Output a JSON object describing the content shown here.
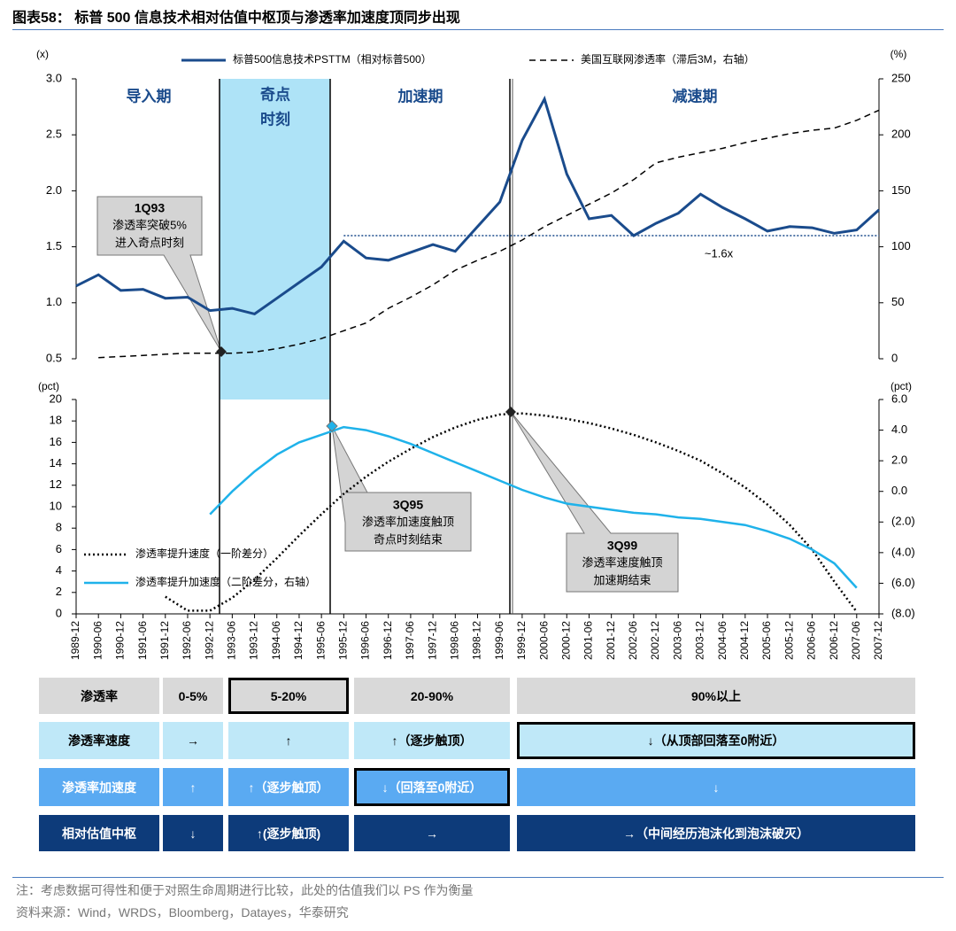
{
  "title": "图表58：  标普 500 信息技术相对估值中枢顶与渗透率加速度顶同步出现",
  "chart_data": [
    {
      "type": "line",
      "y_label": "(x)",
      "y2_label": "(%)",
      "ylim": [
        0.5,
        3.0
      ],
      "yticks": [
        0.5,
        {
          "value": 1,
          "label": "1.0"
        },
        1.5,
        {
          "value": 2,
          "label": "2.0"
        },
        2.5,
        {
          "value": 3,
          "label": "3.0"
        }
      ],
      "y2lim": [
        0,
        250
      ],
      "y2ticks": [
        0,
        50,
        100,
        150,
        200,
        250
      ],
      "series": [
        {
          "name": "标普500信息技术PSTTM（相对标普500）",
          "color": "#1a4b8c",
          "style": "solid",
          "values": [
            1.15,
            1.25,
            1.11,
            1.12,
            1.04,
            1.05,
            0.93,
            0.95,
            0.9,
            1.04,
            1.18,
            1.32,
            1.55,
            1.4,
            1.38,
            1.45,
            1.52,
            1.46,
            1.68,
            1.9,
            2.45,
            2.82,
            2.15,
            1.75,
            1.78,
            1.6,
            1.71,
            1.8,
            1.97,
            1.85,
            1.75,
            1.64,
            1.68,
            1.67,
            1.62,
            1.65,
            1.83
          ]
        },
        {
          "name": "美国互联网渗透率（滞后3M，右轴）",
          "color": "#000000",
          "style": "dashed",
          "axis": "y2",
          "values": [
            null,
            1,
            2,
            3,
            4,
            5,
            5,
            5,
            6,
            9,
            13,
            18,
            25,
            32,
            45,
            55,
            66,
            79,
            88,
            96,
            106,
            118,
            128,
            138,
            148,
            160,
            175,
            180,
            184,
            188,
            193,
            197,
            201,
            204,
            206,
            213,
            222
          ]
        }
      ],
      "reference_line": {
        "value": 1.6,
        "label": "~1.6x",
        "color": "#1a4b8c"
      },
      "phases": [
        "导入期",
        [
          "奇点",
          "时刻"
        ],
        "加速期",
        "减速期"
      ],
      "callout": {
        "title": "1Q93",
        "lines": [
          "渗透率突破5%",
          "进入奇点时刻"
        ]
      }
    },
    {
      "type": "line",
      "y_label": "(pct)",
      "y2_label": "(pct)",
      "categories": [
        "1989-12",
        "1990-06",
        "1990-12",
        "1991-06",
        "1991-12",
        "1992-06",
        "1992-12",
        "1993-06",
        "1993-12",
        "1994-06",
        "1994-12",
        "1995-06",
        "1995-12",
        "1996-06",
        "1996-12",
        "1997-06",
        "1997-12",
        "1998-06",
        "1998-12",
        "1999-06",
        "1999-12",
        "2000-06",
        "2000-12",
        "2001-06",
        "2001-12",
        "2002-06",
        "2002-12",
        "2003-06",
        "2003-12",
        "2004-06",
        "2004-12",
        "2005-06",
        "2005-12",
        "2006-06",
        "2006-12",
        "2007-06",
        "2007-12"
      ],
      "ylim": [
        0,
        20
      ],
      "yticks": [
        0,
        2,
        4,
        6,
        8,
        10,
        12,
        14,
        16,
        18,
        20
      ],
      "y2lim": [
        -8,
        6
      ],
      "y2ticks": [
        {
          "value": -8,
          "label": "(8.0)"
        },
        {
          "value": -6,
          "label": "(6.0)"
        },
        {
          "value": -4,
          "label": "(4.0)"
        },
        {
          "value": -2,
          "label": "(2.0)"
        },
        {
          "value": 0,
          "label": "0.0"
        },
        {
          "value": 2,
          "label": "2.0"
        },
        {
          "value": 4,
          "label": "4.0"
        },
        {
          "value": 6,
          "label": "6.0"
        }
      ],
      "series": [
        {
          "name": "渗透率提升速度（一阶差分）",
          "color": "#000000",
          "style": "dotted",
          "values": [
            null,
            null,
            null,
            null,
            1.6,
            0.3,
            0.3,
            1.5,
            3.2,
            5.2,
            7.3,
            9.3,
            11.2,
            12.8,
            14.2,
            15.4,
            16.5,
            17.4,
            18.1,
            18.6,
            18.7,
            18.5,
            18.2,
            17.8,
            17.3,
            16.7,
            16.0,
            15.2,
            14.3,
            13.1,
            11.8,
            10.2,
            8.3,
            6.0,
            3.0,
            0.2,
            null
          ]
        },
        {
          "name": "渗透率提升加速度（二阶差分，右轴）",
          "color": "#1fb2ea",
          "style": "solid",
          "axis": "y2",
          "values": [
            null,
            null,
            null,
            null,
            null,
            null,
            -1.5,
            0.0,
            1.3,
            2.4,
            3.2,
            3.7,
            4.2,
            4.0,
            3.6,
            3.1,
            2.5,
            1.9,
            1.3,
            0.7,
            0.1,
            -0.4,
            -0.8,
            -1.0,
            -1.2,
            -1.4,
            -1.5,
            -1.7,
            -1.8,
            -2.0,
            -2.2,
            -2.6,
            -3.1,
            -3.8,
            -4.7,
            -6.3,
            null
          ]
        }
      ],
      "callouts": [
        {
          "title": "3Q95",
          "lines": [
            "渗透率加速度触顶",
            "奇点时刻结束"
          ]
        },
        {
          "title": "3Q99",
          "lines": [
            "渗透率速度触顶",
            "加速期结束"
          ]
        }
      ]
    }
  ],
  "table": {
    "rows": [
      [
        "渗透率",
        "0-5%",
        "5-20%",
        "20-90%",
        "90%以上"
      ],
      [
        "渗透率速度",
        "→",
        "↑",
        "↑（逐步触顶）",
        "↓（从顶部回落至0附近）"
      ],
      [
        "渗透率加速度",
        "↑",
        "↑（逐步触顶）",
        "↓（回落至0附近）",
        "↓"
      ],
      [
        "相对估值中枢",
        "↓",
        "↑(逐步触顶)",
        "→",
        "→（中间经历泡沫化到泡沫破灭）"
      ]
    ]
  },
  "notes": [
    "注：考虑数据可得性和便于对照生命周期进行比较，此处的估值我们以 PS 作为衡量",
    "资料来源：Wind，WRDS，Bloomberg，Datayes，华泰研究"
  ]
}
